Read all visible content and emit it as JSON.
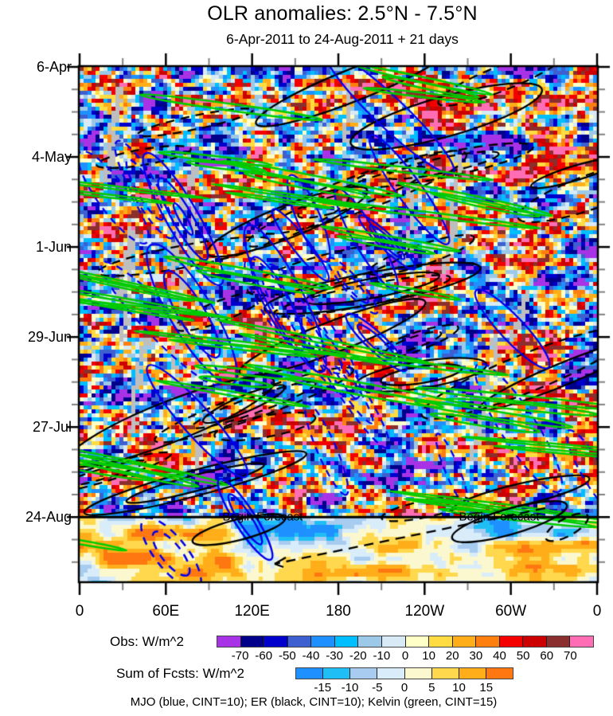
{
  "title": "OLR anomalies: 2.5°N - 7.5°N",
  "subtitle": "6-Apr-2011 to 24-Aug-2011 + 21 days",
  "chart_data": {
    "type": "heatmap",
    "description": "Hovmoller (time vs longitude) diagram of OLR anomalies averaged over 2.5N-7.5N with observed shading, forecast shading after 24-Aug, and MJO/ER/Kelvin wave contour overlays; gray cells denote missing data streaks",
    "x_axis": {
      "tick_labels": [
        "0",
        "60E",
        "120E",
        "180",
        "120W",
        "60W",
        "0"
      ],
      "tick_degrees": [
        0,
        60,
        120,
        180,
        240,
        300,
        360
      ],
      "minor_step_degrees": 30,
      "range_degrees": [
        0,
        360
      ]
    },
    "y_axis": {
      "tick_labels": [
        "6-Apr",
        "4-May",
        "1-Jun",
        "29-Jun",
        "27-Jul",
        "24-Aug"
      ],
      "tick_days": [
        0,
        28,
        56,
        84,
        112,
        140
      ],
      "minor_step_days": 7,
      "total_days_shown": 160,
      "forecast_days": 21
    },
    "forecast_divider": {
      "label": "Begin Forecast",
      "day": 140,
      "occurrences": 2
    },
    "colorbars": [
      {
        "label": "Obs: W/m^2",
        "tick_labels": [
          "-70",
          "-60",
          "-50",
          "-40",
          "-30",
          "-20",
          "-10",
          "0",
          "10",
          "20",
          "30",
          "40",
          "50",
          "60",
          "70"
        ],
        "thresholds": [
          -70,
          -60,
          -50,
          -40,
          -30,
          -20,
          -10,
          0,
          10,
          20,
          30,
          40,
          50,
          60,
          70
        ],
        "colors": [
          "#A832E6",
          "#00008B",
          "#0000CD",
          "#3E5FD0",
          "#1E90FF",
          "#00BFFF",
          "#9CC9E8",
          "#D8EAF6",
          "#FFFFC8",
          "#FFDC41",
          "#FFAE19",
          "#FF7F0E",
          "#F50000",
          "#CC0000",
          "#8B2E2E",
          "#FF6EB4"
        ]
      },
      {
        "label": "Sum of Fcsts: W/m^2",
        "tick_labels": [
          "-15",
          "-10",
          "-5",
          "0",
          "5",
          "10",
          "15"
        ],
        "thresholds": [
          -15,
          -10,
          -5,
          0,
          5,
          10,
          15
        ],
        "colors": [
          "#1E90FF",
          "#1FBFF5",
          "#A8CCF0",
          "#D9ECFA",
          "#FBF8CF",
          "#FFD84D",
          "#FFAE19",
          "#FF7711"
        ]
      }
    ],
    "wave_overlays": {
      "caption": "MJO (blue, CINT=10); ER (black, CINT=10); Kelvin (green, CINT=15)",
      "series": [
        {
          "name": "MJO",
          "color": "#0000EE",
          "line_style": "blue contours",
          "contour_interval": 10
        },
        {
          "name": "ER",
          "color": "#000000",
          "line_style": "black contours",
          "contour_interval": 10
        },
        {
          "name": "Kelvin",
          "color": "#00CC00",
          "line_style": "green contours",
          "contour_interval": 15
        }
      ],
      "missing_data_color": "#BEBEBE"
    }
  }
}
